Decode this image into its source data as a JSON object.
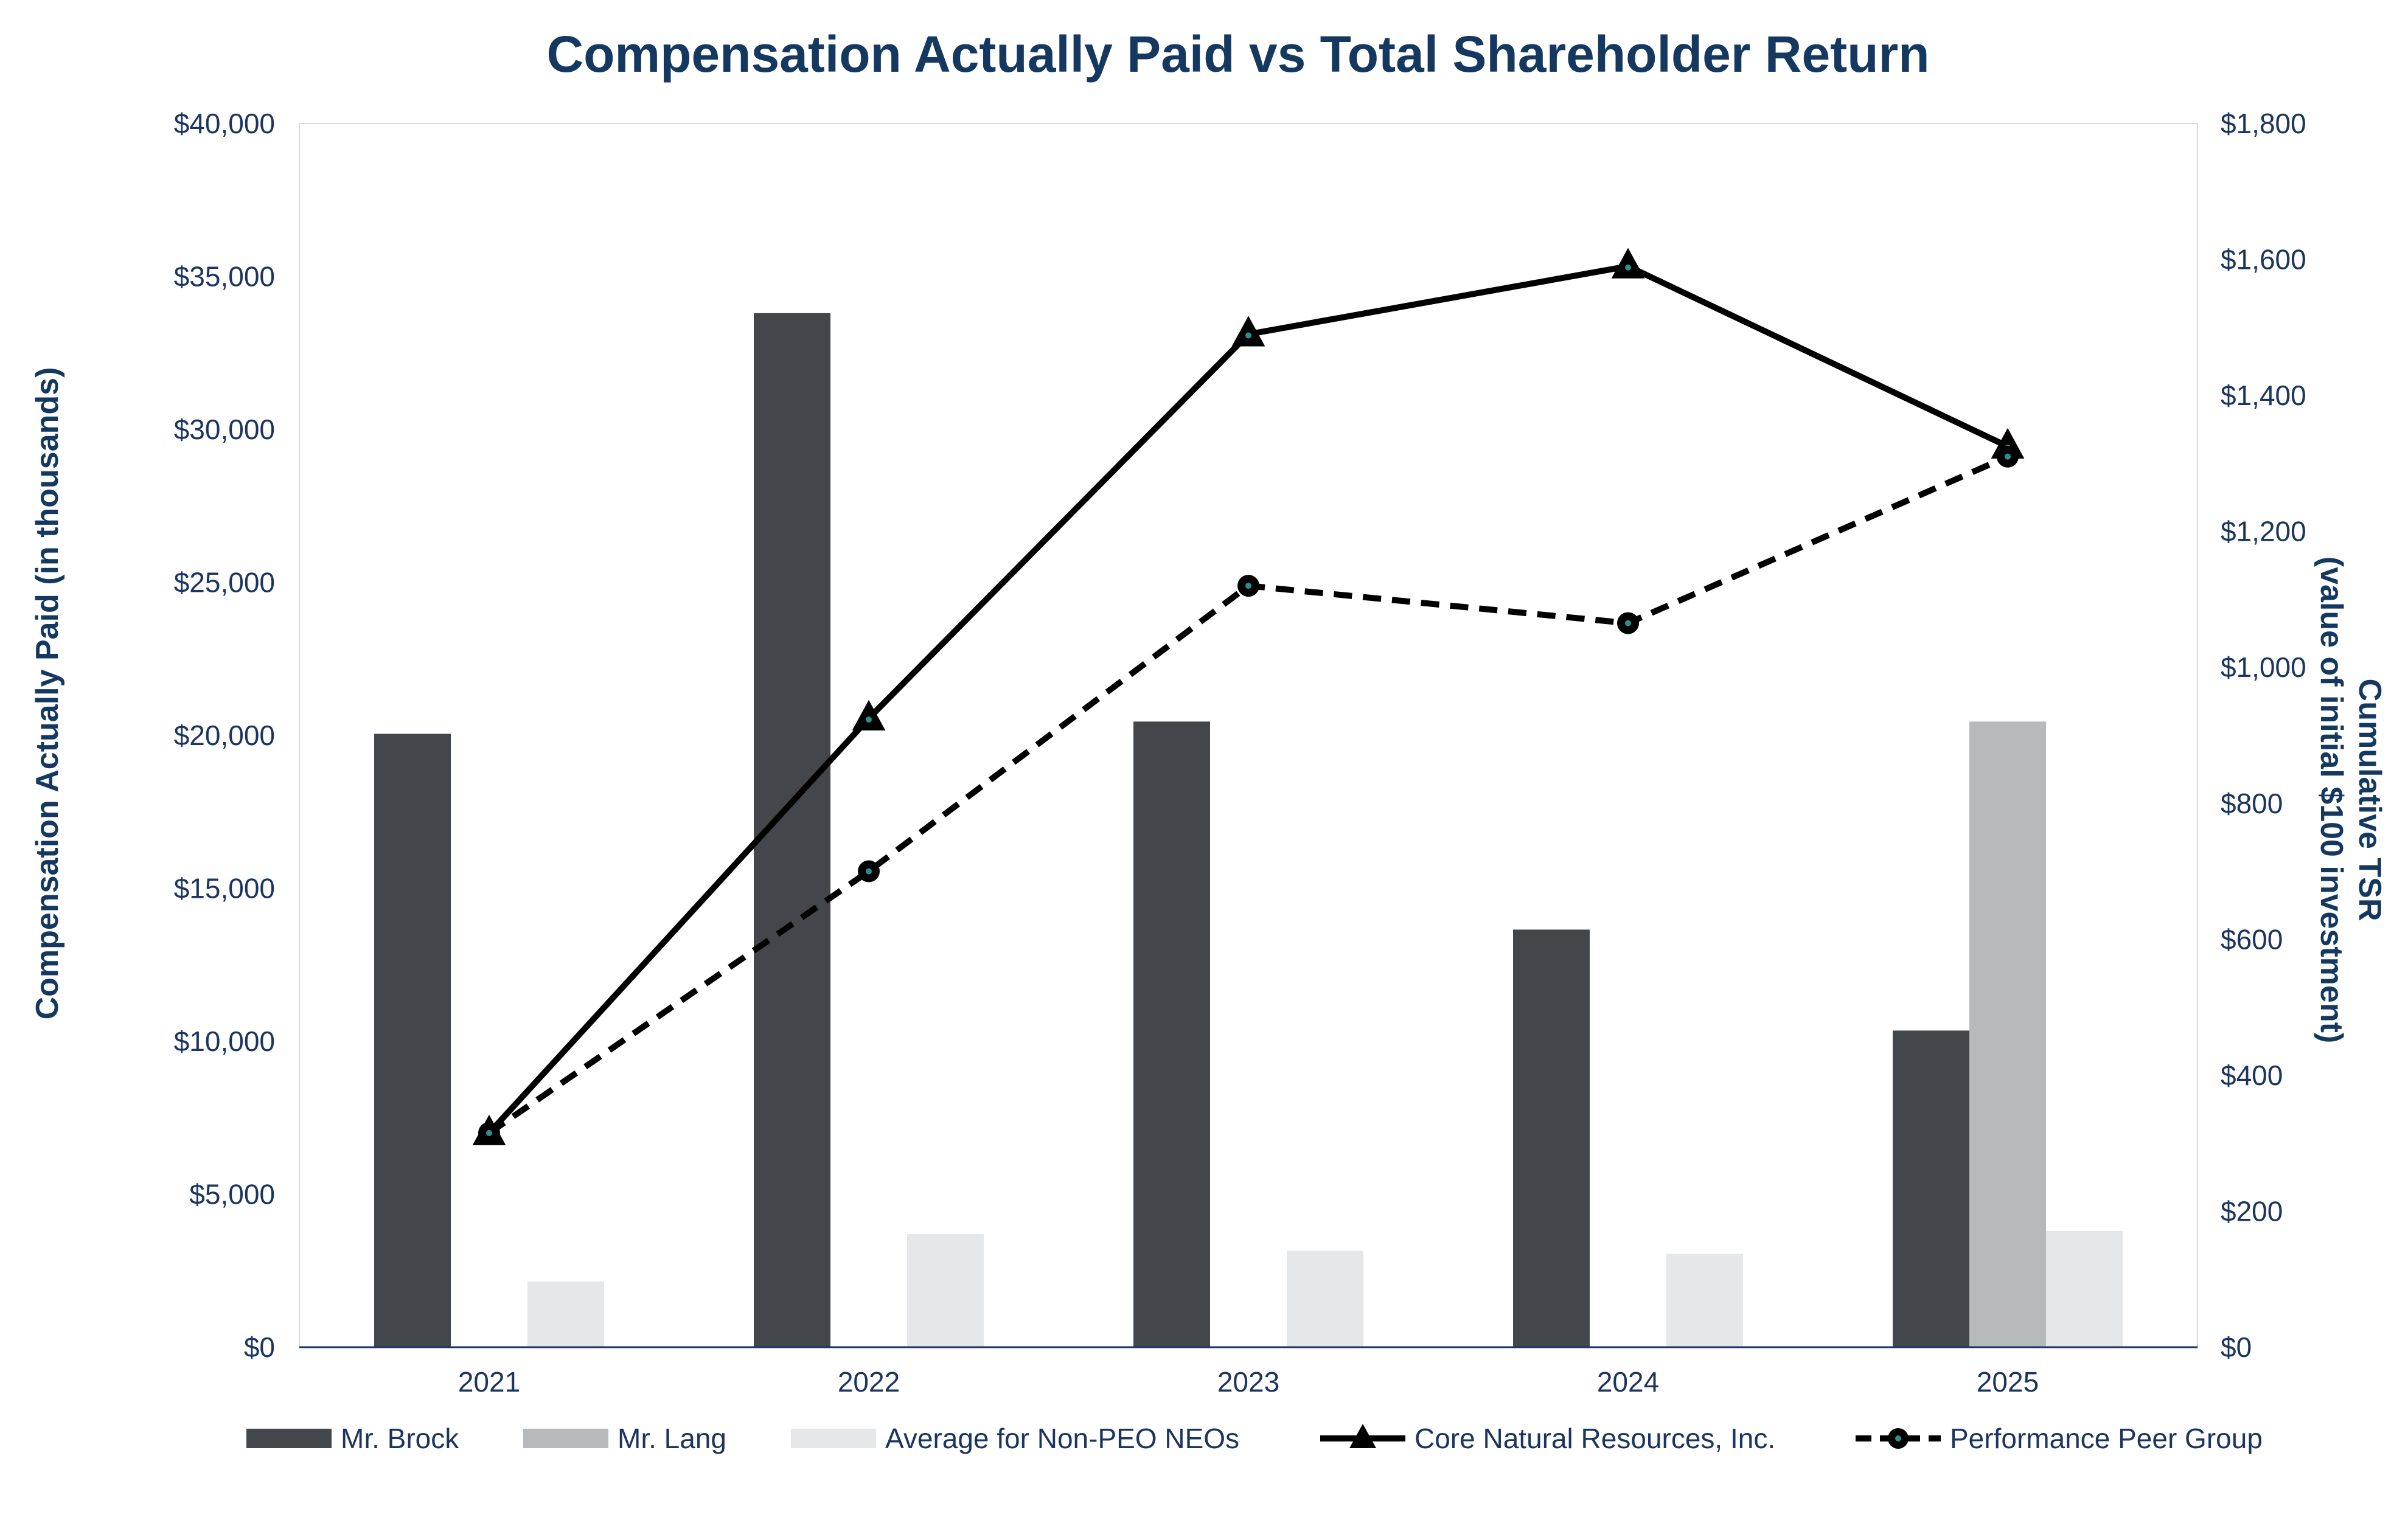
{
  "chart_data": {
    "type": "bar",
    "title": "Compensation Actually Paid vs Total Shareholder Return",
    "ylabel": "Compensation Actually Paid (in thousands)",
    "y2label_line1": "Cumulative TSR",
    "y2label_line2": "(value of initial $100 investment)",
    "categories": [
      "2021",
      "2022",
      "2023",
      "2024",
      "2025"
    ],
    "ylim": [
      0,
      40000
    ],
    "y2lim": [
      0,
      1800
    ],
    "yticks": [
      "$0",
      "$5,000",
      "$10,000",
      "$15,000",
      "$20,000",
      "$25,000",
      "$30,000",
      "$35,000",
      "$40,000"
    ],
    "y2ticks": [
      "$0",
      "$200",
      "$400",
      "$600",
      "$800",
      "$1,000",
      "$1,200",
      "$1,400",
      "$1,600",
      "$1,800"
    ],
    "series": [
      {
        "name": "Mr. Brock",
        "kind": "bar",
        "axis": "left",
        "color": "#43474b",
        "values": [
          20050,
          33800,
          20450,
          13650,
          10350
        ]
      },
      {
        "name": "Mr. Lang",
        "kind": "bar",
        "axis": "left",
        "color": "#b7babd",
        "values": [
          null,
          null,
          null,
          null,
          20450
        ]
      },
      {
        "name": "Average for Non-PEO NEOs",
        "kind": "bar",
        "axis": "left",
        "color": "#e6e7e8",
        "values": [
          2150,
          3700,
          3150,
          3050,
          3800
        ]
      },
      {
        "name": "Core Natural Resources, Inc.",
        "kind": "line",
        "axis": "right",
        "color": "#000000",
        "style": "solid",
        "marker": "triangle",
        "values": [
          315,
          925,
          1490,
          1590,
          1325
        ]
      },
      {
        "name": "Performance Peer Group",
        "kind": "line",
        "axis": "right",
        "color": "#000000",
        "style": "dashed",
        "marker": "circle",
        "values": [
          315,
          700,
          1120,
          1065,
          1310
        ]
      }
    ],
    "grid": false,
    "legend_position": "bottom"
  }
}
